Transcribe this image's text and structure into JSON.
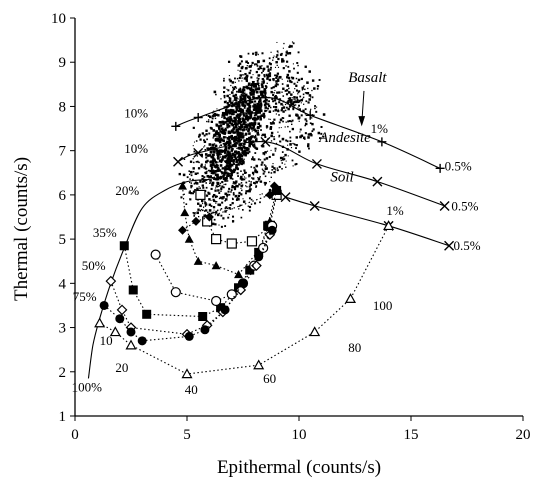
{
  "chart_data": {
    "type": "scatter",
    "xlabel": "Epithermal (counts/s)",
    "ylabel": "Thermal (counts/s)",
    "xlim": [
      0,
      20
    ],
    "ylim": [
      1,
      10
    ],
    "x_ticks": [
      0,
      5,
      10,
      15,
      20
    ],
    "y_ticks": [
      1,
      2,
      3,
      4,
      5,
      6,
      7,
      8,
      9,
      10
    ],
    "grid": false,
    "legend": "none",
    "point_cloud": {
      "description_color": "#000000",
      "center": [
        7.2,
        7.4
      ],
      "points": [
        [
          6.0,
          6.4
        ],
        [
          6.2,
          6.8
        ],
        [
          6.5,
          7.0
        ],
        [
          6.8,
          7.2
        ],
        [
          7.0,
          7.6
        ],
        [
          7.3,
          7.9
        ],
        [
          7.6,
          8.2
        ],
        [
          7.9,
          8.5
        ],
        [
          8.2,
          8.7
        ],
        [
          8.6,
          8.9
        ],
        [
          9.0,
          9.0
        ],
        [
          9.5,
          9.2
        ],
        [
          10.0,
          8.6
        ],
        [
          10.4,
          8.3
        ],
        [
          9.6,
          8.0
        ],
        [
          9.2,
          7.7
        ],
        [
          8.8,
          7.4
        ],
        [
          8.4,
          7.1
        ],
        [
          8.0,
          6.8
        ],
        [
          7.6,
          6.5
        ],
        [
          7.2,
          6.3
        ],
        [
          6.8,
          6.0
        ],
        [
          6.4,
          6.1
        ],
        [
          6.0,
          5.9
        ],
        [
          5.6,
          6.3
        ],
        [
          5.3,
          6.6
        ],
        [
          5.8,
          7.2
        ],
        [
          6.1,
          7.5
        ],
        [
          6.4,
          7.8
        ],
        [
          6.7,
          8.1
        ],
        [
          7.1,
          8.4
        ],
        [
          7.4,
          8.7
        ],
        [
          7.8,
          8.9
        ],
        [
          8.5,
          8.3
        ],
        [
          9.3,
          8.4
        ],
        [
          10.2,
          7.9
        ],
        [
          9.9,
          7.3
        ],
        [
          9.4,
          6.9
        ],
        [
          8.9,
          6.6
        ],
        [
          8.3,
          6.3
        ],
        [
          7.8,
          6.1
        ],
        [
          7.3,
          5.9
        ],
        [
          6.9,
          5.7
        ],
        [
          6.3,
          5.6
        ],
        [
          5.5,
          5.8
        ],
        [
          5.2,
          6.2
        ],
        [
          7.0,
          7.0
        ],
        [
          7.5,
          7.3
        ],
        [
          8.0,
          7.6
        ],
        [
          8.5,
          7.9
        ],
        [
          9.0,
          8.2
        ],
        [
          6.6,
          6.6
        ],
        [
          7.7,
          7.9
        ],
        [
          8.7,
          8.6
        ],
        [
          9.8,
          8.1
        ],
        [
          10.6,
          7.6
        ]
      ]
    },
    "endmember_curves": [
      {
        "label": "Basalt",
        "marker": "plus",
        "points": [
          [
            4.5,
            7.55
          ],
          [
            5.5,
            7.75
          ],
          [
            8.5,
            8.2
          ],
          [
            10.5,
            7.8
          ],
          [
            13.7,
            7.2
          ],
          [
            16.3,
            6.6
          ]
        ],
        "point_labels": [
          "10%",
          "",
          "",
          "",
          "1%",
          "0.5%"
        ]
      },
      {
        "label": "Andesite",
        "marker": "x",
        "points": [
          [
            4.6,
            6.75
          ],
          [
            5.5,
            6.95
          ],
          [
            8.5,
            7.2
          ],
          [
            10.8,
            6.7
          ],
          [
            13.5,
            6.3
          ],
          [
            16.5,
            5.75
          ]
        ],
        "point_labels": [
          "10%",
          "",
          "",
          "",
          "",
          "0.5%"
        ]
      },
      {
        "label": "Soil",
        "marker": "x",
        "points": [
          [
            9.4,
            5.95
          ],
          [
            10.7,
            5.75
          ],
          [
            14.0,
            5.3
          ],
          [
            16.7,
            4.85
          ]
        ],
        "point_labels": [
          "",
          "",
          "1%",
          "0.5%"
        ]
      }
    ],
    "mixing_envelope": {
      "points": [
        [
          0.6,
          1.85
        ],
        [
          0.8,
          2.6
        ],
        [
          1.1,
          3.2
        ],
        [
          1.6,
          4.0
        ],
        [
          2.2,
          4.8
        ],
        [
          3.0,
          5.7
        ],
        [
          4.0,
          6.1
        ],
        [
          5.0,
          6.3
        ],
        [
          6.0,
          6.35
        ]
      ],
      "point_labels": [
        "100%",
        "",
        "",
        "75%",
        "50%",
        "35%",
        "20%",
        "",
        ""
      ]
    },
    "mixing_series": [
      {
        "marker": "triangle-filled",
        "points": [
          [
            4.8,
            6.2
          ],
          [
            4.9,
            5.6
          ],
          [
            5.1,
            5.0
          ],
          [
            5.5,
            4.5
          ],
          [
            6.3,
            4.4
          ],
          [
            7.3,
            4.2
          ],
          [
            8.3,
            4.8
          ],
          [
            8.7,
            5.4
          ],
          [
            9.0,
            6.0
          ]
        ]
      },
      {
        "marker": "square-open",
        "points": [
          [
            5.6,
            6.0
          ],
          [
            5.9,
            5.4
          ],
          [
            6.3,
            5.0
          ],
          [
            7.0,
            4.9
          ],
          [
            7.9,
            4.95
          ],
          [
            8.7,
            5.3
          ],
          [
            9.0,
            6.0
          ]
        ]
      },
      {
        "marker": "diamond-filled",
        "points": [
          [
            4.8,
            5.2
          ],
          [
            5.4,
            5.4
          ],
          [
            6.0,
            5.5
          ],
          [
            8.7,
            6.0
          ],
          [
            8.9,
            6.2
          ]
        ]
      },
      {
        "marker": "square-filled",
        "points": [
          [
            2.2,
            4.85
          ],
          [
            2.6,
            3.85
          ],
          [
            3.2,
            3.3
          ],
          [
            5.7,
            3.25
          ],
          [
            6.5,
            3.45
          ],
          [
            7.3,
            3.9
          ],
          [
            7.8,
            4.3
          ],
          [
            8.2,
            4.7
          ],
          [
            8.6,
            5.3
          ],
          [
            9.0,
            6.1
          ]
        ]
      },
      {
        "marker": "circle-open",
        "points": [
          [
            3.6,
            4.65
          ],
          [
            4.5,
            3.8
          ],
          [
            6.3,
            3.6
          ],
          [
            7.0,
            3.75
          ],
          [
            7.5,
            4.0
          ],
          [
            8.0,
            4.4
          ],
          [
            8.4,
            4.8
          ],
          [
            8.8,
            5.3
          ]
        ]
      },
      {
        "marker": "diamond-open",
        "points": [
          [
            1.6,
            4.05
          ],
          [
            2.1,
            3.4
          ],
          [
            2.5,
            3.0
          ],
          [
            5.0,
            2.85
          ],
          [
            5.9,
            3.05
          ],
          [
            6.6,
            3.35
          ],
          [
            7.4,
            3.85
          ],
          [
            8.1,
            4.4
          ],
          [
            8.7,
            5.1
          ]
        ]
      },
      {
        "marker": "circle-filled",
        "points": [
          [
            1.3,
            3.5
          ],
          [
            2.0,
            3.2
          ],
          [
            2.5,
            2.9
          ],
          [
            3.0,
            2.7
          ],
          [
            5.1,
            2.8
          ],
          [
            5.8,
            2.95
          ],
          [
            6.7,
            3.4
          ],
          [
            7.5,
            4.0
          ],
          [
            8.2,
            4.6
          ],
          [
            8.8,
            5.2
          ]
        ]
      },
      {
        "marker": "triangle-open",
        "points": [
          [
            1.1,
            3.1
          ],
          [
            1.8,
            2.9
          ],
          [
            2.5,
            2.6
          ],
          [
            5.0,
            1.95
          ],
          [
            8.2,
            2.15
          ],
          [
            10.7,
            2.9
          ],
          [
            12.3,
            3.65
          ],
          [
            14.0,
            5.3
          ]
        ],
        "point_labels": [
          "",
          "10",
          "20",
          "40",
          "60",
          "80",
          "100",
          ""
        ]
      }
    ],
    "annotations": [
      {
        "text": "10%",
        "at": [
          2.2,
          7.75
        ]
      },
      {
        "text": "10%",
        "at": [
          2.2,
          6.95
        ]
      },
      {
        "text": "20%",
        "at": [
          1.8,
          6.0
        ]
      },
      {
        "text": "35%",
        "at": [
          0.8,
          5.05
        ]
      },
      {
        "text": "50%",
        "at": [
          0.3,
          4.3
        ]
      },
      {
        "text": "75%",
        "at": [
          -0.1,
          3.6
        ]
      },
      {
        "text": "100%",
        "at": [
          -0.15,
          1.55
        ]
      },
      {
        "text": "10",
        "at": [
          1.1,
          2.6
        ]
      },
      {
        "text": "20",
        "at": [
          1.8,
          2.0
        ]
      },
      {
        "text": "40",
        "at": [
          4.9,
          1.5
        ]
      },
      {
        "text": "60",
        "at": [
          8.4,
          1.75
        ]
      },
      {
        "text": "80",
        "at": [
          12.2,
          2.45
        ]
      },
      {
        "text": "100",
        "at": [
          13.3,
          3.4
        ]
      },
      {
        "text": "1%",
        "at": [
          13.2,
          7.4
        ]
      },
      {
        "text": "0.5%",
        "at": [
          16.5,
          6.55
        ]
      },
      {
        "text": "0.5%",
        "at": [
          16.8,
          5.65
        ]
      },
      {
        "text": "1%",
        "at": [
          13.9,
          5.55
        ]
      },
      {
        "text": "0.5%",
        "at": [
          16.9,
          4.75
        ]
      },
      {
        "text": "Basalt",
        "at": [
          12.2,
          8.55
        ],
        "italic": true
      },
      {
        "text": "Andesite",
        "at": [
          10.9,
          7.2
        ],
        "italic": true
      },
      {
        "text": "Soil",
        "at": [
          11.4,
          6.3
        ],
        "italic": true
      }
    ]
  }
}
